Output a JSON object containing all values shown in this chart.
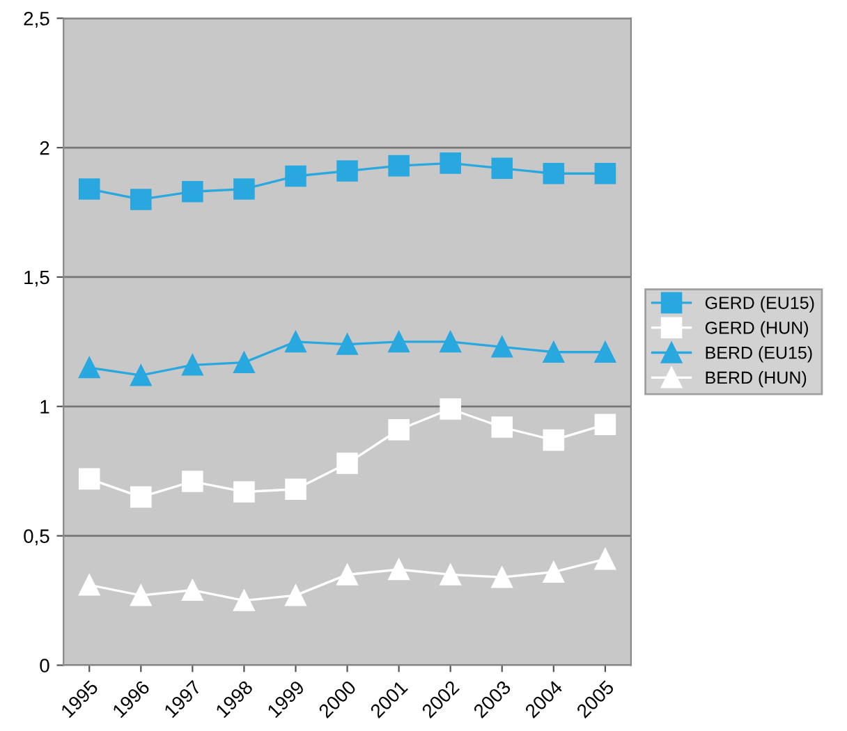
{
  "chart_data": {
    "type": "line",
    "categories": [
      "1995",
      "1996",
      "1997",
      "1998",
      "1999",
      "2000",
      "2001",
      "2002",
      "2003",
      "2004",
      "2005"
    ],
    "series": [
      {
        "name": "GERD (EU15)",
        "color": "#29a8e0",
        "marker": "square",
        "values": [
          1.84,
          1.8,
          1.83,
          1.84,
          1.89,
          1.91,
          1.93,
          1.94,
          1.92,
          1.9,
          1.9
        ]
      },
      {
        "name": "GERD (HUN)",
        "color": "#ffffff",
        "marker": "square",
        "values": [
          0.72,
          0.65,
          0.71,
          0.67,
          0.68,
          0.78,
          0.91,
          0.99,
          0.92,
          0.87,
          0.93
        ]
      },
      {
        "name": "BERD (EU15)",
        "color": "#29a8e0",
        "marker": "triangle",
        "values": [
          1.15,
          1.12,
          1.16,
          1.17,
          1.25,
          1.24,
          1.25,
          1.25,
          1.23,
          1.21,
          1.21
        ]
      },
      {
        "name": "BERD (HUN)",
        "color": "#ffffff",
        "marker": "triangle",
        "values": [
          0.31,
          0.27,
          0.29,
          0.25,
          0.27,
          0.35,
          0.37,
          0.35,
          0.34,
          0.36,
          0.41
        ]
      }
    ],
    "ylim": [
      0,
      2.5
    ],
    "yticks": [
      0,
      {
        "value": 0.5,
        "label": "0,5"
      },
      1,
      {
        "value": 1.5,
        "label": "1,5"
      },
      2,
      {
        "value": 2.5,
        "label": "2,5"
      }
    ],
    "grid": "y",
    "legend": "right",
    "line_style": "solid"
  }
}
